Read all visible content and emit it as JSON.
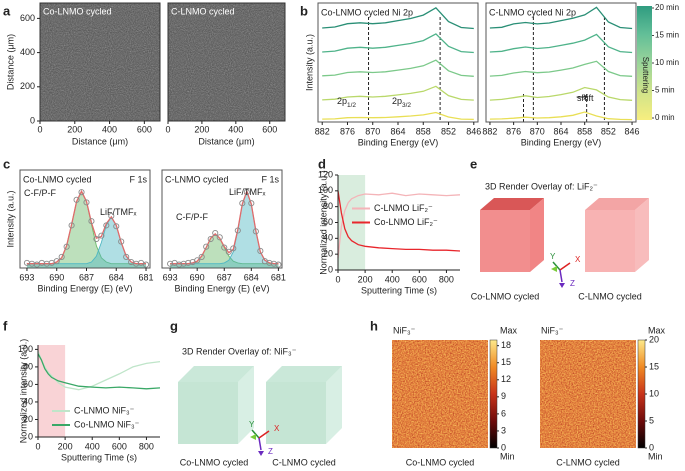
{
  "panel_labels": [
    "a",
    "b",
    "c",
    "d",
    "e",
    "f",
    "g",
    "h"
  ],
  "micrographs": {
    "ylabel": "Distance (μm)",
    "lim": [
      0,
      690
    ],
    "yticks": [
      0,
      200,
      400,
      600
    ],
    "images": [
      {
        "title": "Co-LNMO cycled",
        "xlabel": "Distance (μm)",
        "xticks": [
          0,
          200,
          400,
          600
        ]
      },
      {
        "title": "C-LNMO cycled",
        "xlabel": "Distance (μm)",
        "xticks": [
          0,
          200,
          400,
          600
        ]
      }
    ]
  },
  "sputtering_colorbar": {
    "label": "Sputtering",
    "lim": [
      0,
      20
    ],
    "colors": [
      "#f7ee7f",
      "#cfe38a",
      "#9ad49a",
      "#63bf98",
      "#2f9c80"
    ],
    "ticks": [
      {
        "value": 20,
        "label": "20 min"
      },
      {
        "value": 15,
        "label": "15 min"
      },
      {
        "value": 10,
        "label": "10 min"
      },
      {
        "value": 5,
        "label": "5 min"
      },
      {
        "value": 0,
        "label": "0 min"
      }
    ]
  },
  "chart_data": [
    {
      "type": "line",
      "title": "Co-LNMO cycled Ni 2p",
      "ylabel": "Intensity (a.u.)",
      "xlabel": "Binding Energy (eV)",
      "xlim": [
        883,
        845
      ],
      "xticks": [
        882,
        876,
        870,
        864,
        858,
        852,
        846
      ],
      "ylim": [
        0,
        5
      ],
      "x": [
        882,
        879,
        876,
        873,
        870,
        867,
        864,
        861,
        858,
        855,
        852,
        849,
        846
      ],
      "vlines": [
        871,
        854
      ],
      "series": [
        {
          "color": "#e9df55",
          "values": [
            0.12,
            0.13,
            0.18,
            0.19,
            0.18,
            0.19,
            0.22,
            0.25,
            0.3,
            0.4,
            0.21,
            0.12,
            0.11
          ]
        },
        {
          "color": "#b9d86a",
          "values": [
            0.93,
            0.96,
            1.05,
            1.08,
            1.05,
            1.08,
            1.14,
            1.2,
            1.29,
            1.5,
            1.11,
            0.95,
            0.92
          ]
        },
        {
          "color": "#7cc98a",
          "values": [
            1.94,
            1.97,
            2.08,
            2.11,
            2.08,
            2.11,
            2.18,
            2.25,
            2.36,
            2.6,
            2.15,
            1.96,
            1.92
          ]
        },
        {
          "color": "#4fb38a",
          "values": [
            2.94,
            2.98,
            3.1,
            3.14,
            3.1,
            3.14,
            3.22,
            3.3,
            3.42,
            3.7,
            3.18,
            2.96,
            2.92
          ]
        },
        {
          "color": "#2a8f76",
          "values": [
            3.95,
            3.99,
            4.13,
            4.17,
            4.13,
            4.17,
            4.26,
            4.35,
            4.49,
            4.8,
            4.22,
            3.97,
            3.93
          ]
        }
      ],
      "annotations": [
        {
          "text": "2p",
          "sub": "1/2"
        },
        {
          "text": "2p",
          "sub": "3/2"
        }
      ]
    },
    {
      "type": "line",
      "title": "C-LNMO cycled Ni 2p",
      "xlabel": "Binding Energy (eV)",
      "xlim": [
        883,
        845
      ],
      "xticks": [
        882,
        876,
        870,
        864,
        858,
        852,
        846
      ],
      "ylim": [
        0,
        5
      ],
      "x": [
        882,
        879,
        876,
        873,
        870,
        867,
        864,
        861,
        858,
        855,
        852,
        849,
        846
      ],
      "vlines": [
        871,
        853
      ],
      "shift_lines": [
        873.5,
        857.5
      ],
      "series": [
        {
          "color": "#e9df55",
          "values": [
            0.12,
            0.13,
            0.16,
            0.2,
            0.17,
            0.18,
            0.22,
            0.28,
            0.42,
            0.25,
            0.14,
            0.11,
            0.1
          ]
        },
        {
          "color": "#b9d86a",
          "values": [
            0.92,
            0.95,
            1.02,
            1.1,
            1.03,
            1.07,
            1.15,
            1.25,
            1.45,
            1.35,
            1.05,
            0.94,
            0.91
          ]
        },
        {
          "color": "#7cc98a",
          "values": [
            1.93,
            1.96,
            2.06,
            2.12,
            2.07,
            2.1,
            2.18,
            2.27,
            2.42,
            2.55,
            2.12,
            1.95,
            1.92
          ]
        },
        {
          "color": "#4fb38a",
          "values": [
            2.94,
            2.97,
            3.08,
            3.15,
            3.09,
            3.13,
            3.22,
            3.31,
            3.44,
            3.68,
            3.16,
            2.96,
            2.92
          ]
        },
        {
          "color": "#2a8f76",
          "values": [
            3.95,
            3.98,
            4.12,
            4.18,
            4.12,
            4.16,
            4.26,
            4.36,
            4.5,
            4.82,
            4.2,
            3.97,
            3.93
          ]
        }
      ],
      "annotations": [
        {
          "text": "shift"
        }
      ]
    },
    {
      "type": "line",
      "title": "Co-LNMO cycled",
      "subtitle": "F 1s",
      "ylabel": "Intensity (a.u.)",
      "xlabel": "Binding Energy (E) (eV)",
      "xlim": [
        693.7,
        680.6
      ],
      "xticks": [
        693,
        690,
        687,
        684,
        681
      ],
      "ylim": [
        0,
        1.15
      ],
      "x": [
        693,
        692.5,
        692,
        691.5,
        691,
        690.5,
        690,
        689.5,
        689,
        688.5,
        688,
        687.5,
        687,
        686.5,
        686,
        685.5,
        685,
        684.5,
        684,
        683.5,
        683,
        682.5,
        682,
        681.5,
        681
      ],
      "series": [
        {
          "style": "fill",
          "color": "#6dbb6b",
          "values": [
            0.05,
            0.05,
            0.05,
            0.05,
            0.05,
            0.05,
            0.07,
            0.12,
            0.26,
            0.51,
            0.78,
            0.9,
            0.78,
            0.51,
            0.26,
            0.12,
            0.07,
            0.05,
            0.05,
            0.05,
            0.05,
            0.05,
            0.05,
            0.05,
            0.05
          ]
        },
        {
          "style": "fill",
          "color": "#4fb7c3",
          "values": [
            0.05,
            0.05,
            0.05,
            0.05,
            0.05,
            0.05,
            0.05,
            0.05,
            0.05,
            0.05,
            0.05,
            0.05,
            0.05,
            0.07,
            0.14,
            0.3,
            0.5,
            0.6,
            0.5,
            0.3,
            0.14,
            0.07,
            0.05,
            0.05,
            0.05
          ]
        },
        {
          "style": "line",
          "color": "#e06b6b",
          "values": [
            0.05,
            0.05,
            0.05,
            0.05,
            0.05,
            0.05,
            0.07,
            0.12,
            0.26,
            0.51,
            0.78,
            0.9,
            0.78,
            0.53,
            0.35,
            0.37,
            0.52,
            0.6,
            0.5,
            0.3,
            0.14,
            0.07,
            0.05,
            0.05,
            0.05
          ]
        },
        {
          "style": "markers",
          "color": "#8a8a8a",
          "values": [
            0.06,
            0.05,
            0.04,
            0.06,
            0.05,
            0.06,
            0.08,
            0.13,
            0.25,
            0.5,
            0.8,
            0.89,
            0.77,
            0.55,
            0.34,
            0.38,
            0.5,
            0.61,
            0.49,
            0.31,
            0.13,
            0.07,
            0.05,
            0.06,
            0.04
          ]
        }
      ],
      "annotations": [
        {
          "text": "C-F/P-F"
        },
        {
          "text": "LiF/TMFₓ"
        }
      ]
    },
    {
      "type": "line",
      "title": "C-LNMO cycled",
      "subtitle": "F 1s",
      "xlabel": "Binding Energy (E) (eV)",
      "xlim": [
        693.9,
        680.6
      ],
      "xticks": [
        693,
        690,
        687,
        684,
        681
      ],
      "ylim": [
        0,
        1.15
      ],
      "x": [
        693,
        692.5,
        692,
        691.5,
        691,
        690.5,
        690,
        689.5,
        689,
        688.5,
        688,
        687.5,
        687,
        686.5,
        686,
        685.5,
        685,
        684.5,
        684,
        683.5,
        683,
        682.5,
        682,
        681.5,
        681
      ],
      "series": [
        {
          "style": "fill",
          "color": "#6dbb6b",
          "values": [
            0.05,
            0.05,
            0.05,
            0.05,
            0.05,
            0.06,
            0.08,
            0.14,
            0.24,
            0.35,
            0.4,
            0.35,
            0.24,
            0.14,
            0.08,
            0.06,
            0.05,
            0.05,
            0.05,
            0.05,
            0.05,
            0.05,
            0.05,
            0.05,
            0.05
          ]
        },
        {
          "style": "fill",
          "color": "#4fb7c3",
          "values": [
            0.05,
            0.05,
            0.05,
            0.05,
            0.05,
            0.05,
            0.05,
            0.05,
            0.05,
            0.05,
            0.05,
            0.05,
            0.06,
            0.09,
            0.19,
            0.44,
            0.75,
            0.9,
            0.75,
            0.44,
            0.19,
            0.09,
            0.06,
            0.05,
            0.05
          ]
        },
        {
          "style": "line",
          "color": "#e06b6b",
          "values": [
            0.05,
            0.05,
            0.05,
            0.05,
            0.05,
            0.06,
            0.08,
            0.14,
            0.24,
            0.35,
            0.4,
            0.35,
            0.25,
            0.18,
            0.22,
            0.45,
            0.75,
            0.9,
            0.75,
            0.44,
            0.19,
            0.09,
            0.06,
            0.05,
            0.05
          ]
        },
        {
          "style": "markers",
          "color": "#8a8a8a",
          "values": [
            0.05,
            0.06,
            0.04,
            0.05,
            0.06,
            0.07,
            0.09,
            0.13,
            0.25,
            0.34,
            0.41,
            0.36,
            0.24,
            0.19,
            0.23,
            0.44,
            0.76,
            0.89,
            0.76,
            0.43,
            0.2,
            0.08,
            0.06,
            0.05,
            0.04
          ]
        }
      ],
      "annotations": [
        {
          "text": "C-F/P-F"
        },
        {
          "text": "LiF/TMFₓ"
        }
      ]
    },
    {
      "type": "line",
      "ylabel": "Normalized intensity (a.u.)",
      "xlabel": "Sputtering Time (s)",
      "xlim": [
        0,
        900
      ],
      "xticks": [
        0,
        200,
        400,
        600,
        800
      ],
      "ylim": [
        0,
        120
      ],
      "yticks": [
        0,
        20,
        40,
        60,
        80,
        100,
        120
      ],
      "shade": [
        0,
        200
      ],
      "shade_color": "#cfe8d6",
      "legend": "center right",
      "x": [
        0,
        25,
        50,
        75,
        100,
        150,
        200,
        300,
        400,
        500,
        600,
        700,
        800,
        900
      ],
      "series": [
        {
          "name": "C-LNMO LiF₂⁻",
          "color": "#f4b4b8",
          "values": [
            15,
            55,
            75,
            85,
            90,
            94,
            96,
            95,
            97,
            94,
            96,
            95,
            94,
            95
          ]
        },
        {
          "name": "Co-LNMO LiF₂⁻",
          "color": "#e8262c",
          "values": [
            100,
            72,
            52,
            42,
            37,
            32,
            30,
            28,
            27,
            26,
            26,
            25,
            25,
            24
          ]
        }
      ]
    },
    {
      "type": "line",
      "ylabel": "Normalized intensity (a.u.)",
      "xlabel": "Sputtering Time (s)",
      "xlim": [
        0,
        900
      ],
      "xticks": [
        0,
        200,
        400,
        600,
        800
      ],
      "ylim": [
        0,
        105
      ],
      "yticks": [
        0,
        20,
        40,
        60,
        80,
        100
      ],
      "shade": [
        0,
        200
      ],
      "shade_color": "#f7c8cc",
      "legend": "lower right",
      "x": [
        0,
        25,
        50,
        75,
        100,
        150,
        200,
        300,
        400,
        500,
        600,
        700,
        800,
        900
      ],
      "series": [
        {
          "name": "C-LNMO NiF₃⁻",
          "color": "#bfe5c9",
          "values": [
            98,
            88,
            80,
            74,
            70,
            62,
            57,
            54,
            58,
            65,
            72,
            80,
            84,
            86
          ]
        },
        {
          "name": "Co-LNMO NiF₃⁻",
          "color": "#3aa867",
          "values": [
            95,
            88,
            78,
            72,
            68,
            64,
            62,
            58,
            57,
            56,
            57,
            56,
            55,
            56
          ]
        }
      ]
    }
  ],
  "render_e": {
    "title": "3D Render Overlay of: LiF₂⁻",
    "captions": [
      "Co-LNMO cycled",
      "C-LNMO cycled"
    ],
    "axes": [
      "X",
      "Y",
      "Z"
    ]
  },
  "render_g": {
    "title": "3D Render Overlay of: NiF₃⁻",
    "captions": [
      "Co-LNMO cycled",
      "C-LNMO cycled"
    ],
    "axes": [
      "X",
      "Y",
      "Z"
    ]
  },
  "heatmaps": [
    {
      "title": "NiF₃⁻",
      "caption": "Co-LNMO cycled",
      "max_label": "Max",
      "min_label": "Min",
      "lim": [
        0,
        19
      ],
      "ticks": [
        0,
        3,
        6,
        9,
        12,
        15,
        18
      ]
    },
    {
      "title": "NiF₃⁻",
      "caption": "C-LNMO cycled",
      "max_label": "Max",
      "min_label": "Min",
      "lim": [
        0,
        20
      ],
      "ticks": [
        0,
        5,
        10,
        15,
        20
      ]
    }
  ],
  "heatmap_colormap": [
    "#000000",
    "#6e0b0b",
    "#c8331a",
    "#f08a24",
    "#fde98a"
  ]
}
